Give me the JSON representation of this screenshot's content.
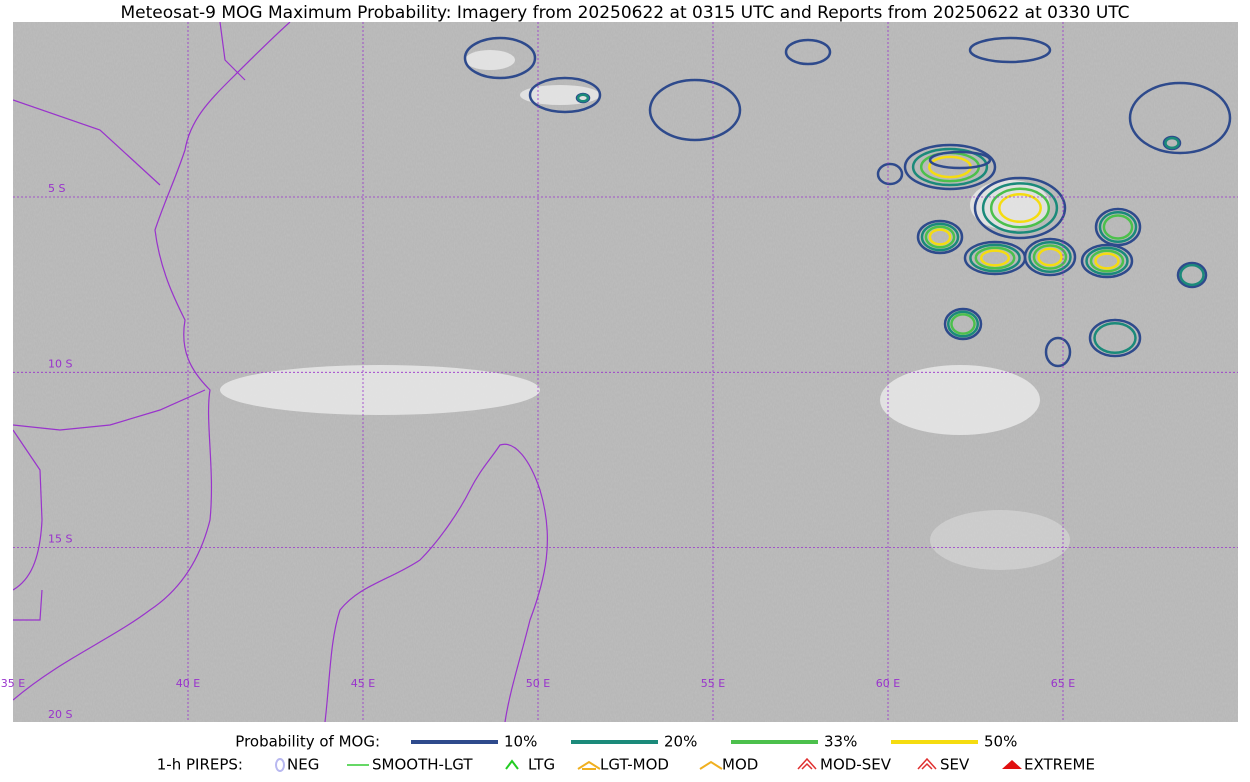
{
  "title": "Meteosat-9 MOG Maximum Probability: Imagery from 20250622 at 0315 UTC and Reports from 20250622 at 0330 UTC",
  "latitude_labels": [
    "5 S",
    "10 S",
    "15 S",
    "20 S"
  ],
  "longitude_labels": [
    "35 E",
    "40 E",
    "45 E",
    "50 E",
    "55 E",
    "60 E",
    "65 E"
  ],
  "legend": {
    "probability": {
      "title": "Probability of MOG:",
      "entries": [
        {
          "label": "10%",
          "color": "#2e4a8c"
        },
        {
          "label": "20%",
          "color": "#1b8a7a"
        },
        {
          "label": "33%",
          "color": "#4cc04c"
        },
        {
          "label": "50%",
          "color": "#f5dc10"
        }
      ]
    },
    "pireps": {
      "title": "1-h PIREPS:",
      "entries": [
        {
          "label": "NEG",
          "color": "#b8b8f0"
        },
        {
          "label": "SMOOTH-LGT",
          "color": "#33cc33"
        },
        {
          "label": "LTG",
          "color": "#22cc22"
        },
        {
          "label": "LGT-MOD",
          "color": "#f0b020"
        },
        {
          "label": "MOD",
          "color": "#f0b020"
        },
        {
          "label": "MOD-SEV",
          "color": "#e03030"
        },
        {
          "label": "SEV",
          "color": "#e03030"
        },
        {
          "label": "EXTREME",
          "color": "#e01010"
        }
      ]
    }
  }
}
